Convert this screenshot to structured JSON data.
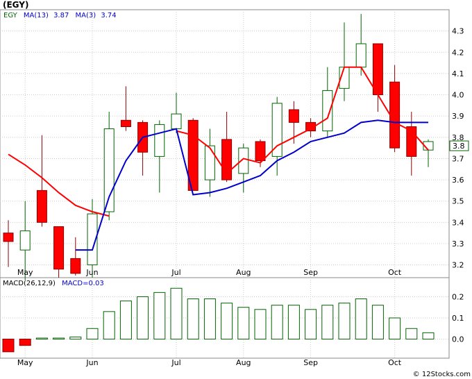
{
  "title": "(EGY)",
  "watermark": "© 12Stocks.com",
  "legend": {
    "ticker": "EGY",
    "ma13_label": "MA(13)",
    "ma13_value": "3.87",
    "ma3_label": "MA(3)",
    "ma3_value": "3.74"
  },
  "macd_legend": {
    "params": "MACD(26,12,9)",
    "value": "MACD=0.03"
  },
  "colors": {
    "up_fill": "#ffffff",
    "down_fill": "#ff0000",
    "candle_stroke_up": "#006400",
    "candle_stroke_down": "#8b0000",
    "ma_short": "#ff0000",
    "ma_long": "#0000cc",
    "macd_bar": "#006400",
    "macd_neg": "#ff0000",
    "grid": "#cccccc",
    "ticker_text": "#006400",
    "ma_text": "#0000cc",
    "last_box": "#006400"
  },
  "chart_data": [
    {
      "type": "candlestick",
      "ylim": [
        3.14,
        4.4
      ],
      "y_ticks": [
        3.2,
        3.3,
        3.4,
        3.5,
        3.6,
        3.7,
        3.8,
        3.9,
        4.0,
        4.1,
        4.2,
        4.3
      ],
      "x_tick_labels": [
        "May",
        "Jun",
        "Jul",
        "Aug",
        "Sep",
        "Oct"
      ],
      "x_tick_index": [
        1,
        5,
        10,
        14,
        18,
        23
      ],
      "last_price_label": "3.8",
      "last_price": 3.76,
      "candles": [
        {
          "o": 3.35,
          "h": 3.41,
          "l": 3.19,
          "c": 3.31
        },
        {
          "o": 3.27,
          "h": 3.5,
          "l": 3.13,
          "c": 3.36
        },
        {
          "o": 3.55,
          "h": 3.81,
          "l": 3.38,
          "c": 3.4
        },
        {
          "o": 3.38,
          "h": 3.38,
          "l": 3.14,
          "c": 3.18
        },
        {
          "o": 3.23,
          "h": 3.33,
          "l": 3.15,
          "c": 3.16
        },
        {
          "o": 3.2,
          "h": 3.51,
          "l": 3.14,
          "c": 3.44
        },
        {
          "o": 3.45,
          "h": 3.92,
          "l": 3.41,
          "c": 3.84
        },
        {
          "o": 3.88,
          "h": 4.04,
          "l": 3.83,
          "c": 3.85
        },
        {
          "o": 3.87,
          "h": 3.88,
          "l": 3.62,
          "c": 3.73
        },
        {
          "o": 3.71,
          "h": 3.88,
          "l": 3.54,
          "c": 3.86
        },
        {
          "o": 3.84,
          "h": 4.01,
          "l": 3.82,
          "c": 3.91
        },
        {
          "o": 3.88,
          "h": 3.89,
          "l": 3.55,
          "c": 3.55
        },
        {
          "o": 3.6,
          "h": 3.84,
          "l": 3.52,
          "c": 3.76
        },
        {
          "o": 3.79,
          "h": 3.92,
          "l": 3.59,
          "c": 3.6
        },
        {
          "o": 3.63,
          "h": 3.77,
          "l": 3.54,
          "c": 3.75
        },
        {
          "o": 3.78,
          "h": 3.79,
          "l": 3.66,
          "c": 3.69
        },
        {
          "o": 3.71,
          "h": 3.99,
          "l": 3.62,
          "c": 3.96
        },
        {
          "o": 3.93,
          "h": 3.97,
          "l": 3.77,
          "c": 3.87
        },
        {
          "o": 3.87,
          "h": 3.89,
          "l": 3.8,
          "c": 3.83
        },
        {
          "o": 3.83,
          "h": 4.13,
          "l": 3.8,
          "c": 4.02
        },
        {
          "o": 4.03,
          "h": 4.34,
          "l": 3.97,
          "c": 4.13
        },
        {
          "o": 4.13,
          "h": 4.38,
          "l": 4.09,
          "c": 4.24
        },
        {
          "o": 4.24,
          "h": 4.24,
          "l": 3.92,
          "c": 4.0
        },
        {
          "o": 4.06,
          "h": 4.14,
          "l": 3.73,
          "c": 3.75
        },
        {
          "o": 3.85,
          "h": 3.92,
          "l": 3.62,
          "c": 3.71
        },
        {
          "o": 3.74,
          "h": 3.79,
          "l": 3.66,
          "c": 3.78
        }
      ],
      "series": [
        {
          "values": [
            3.72,
            3.67,
            3.61,
            3.54,
            3.48,
            3.45,
            3.43,
            null,
            null,
            null,
            3.83,
            3.81,
            3.75,
            3.63,
            3.7,
            3.68,
            3.76,
            3.8,
            3.84,
            3.89,
            4.13,
            4.13,
            4.0,
            3.87,
            3.83,
            3.74
          ]
        },
        {
          "values": [
            null,
            null,
            null,
            null,
            3.27,
            3.27,
            3.52,
            3.69,
            3.8,
            3.82,
            3.84,
            3.53,
            3.54,
            3.56,
            3.59,
            3.62,
            3.69,
            3.73,
            3.78,
            3.8,
            3.82,
            3.87,
            3.88,
            3.87,
            3.87,
            3.87
          ]
        }
      ]
    },
    {
      "type": "bar",
      "title": "MACD",
      "ylim": [
        -0.09,
        0.29
      ],
      "y_ticks": [
        0.0,
        0.1,
        0.2
      ],
      "y_tick_labels": [
        "0.0",
        "0.1",
        "0.2"
      ],
      "x_tick_labels": [
        "May",
        "Jun",
        "Jul",
        "Aug",
        "Sep",
        "Oct"
      ],
      "values": [
        -0.06,
        -0.03,
        0.005,
        0.005,
        0.01,
        0.05,
        0.13,
        0.18,
        0.2,
        0.22,
        0.24,
        0.19,
        0.19,
        0.17,
        0.15,
        0.14,
        0.16,
        0.16,
        0.14,
        0.16,
        0.17,
        0.19,
        0.16,
        0.1,
        0.05,
        0.03
      ]
    }
  ]
}
